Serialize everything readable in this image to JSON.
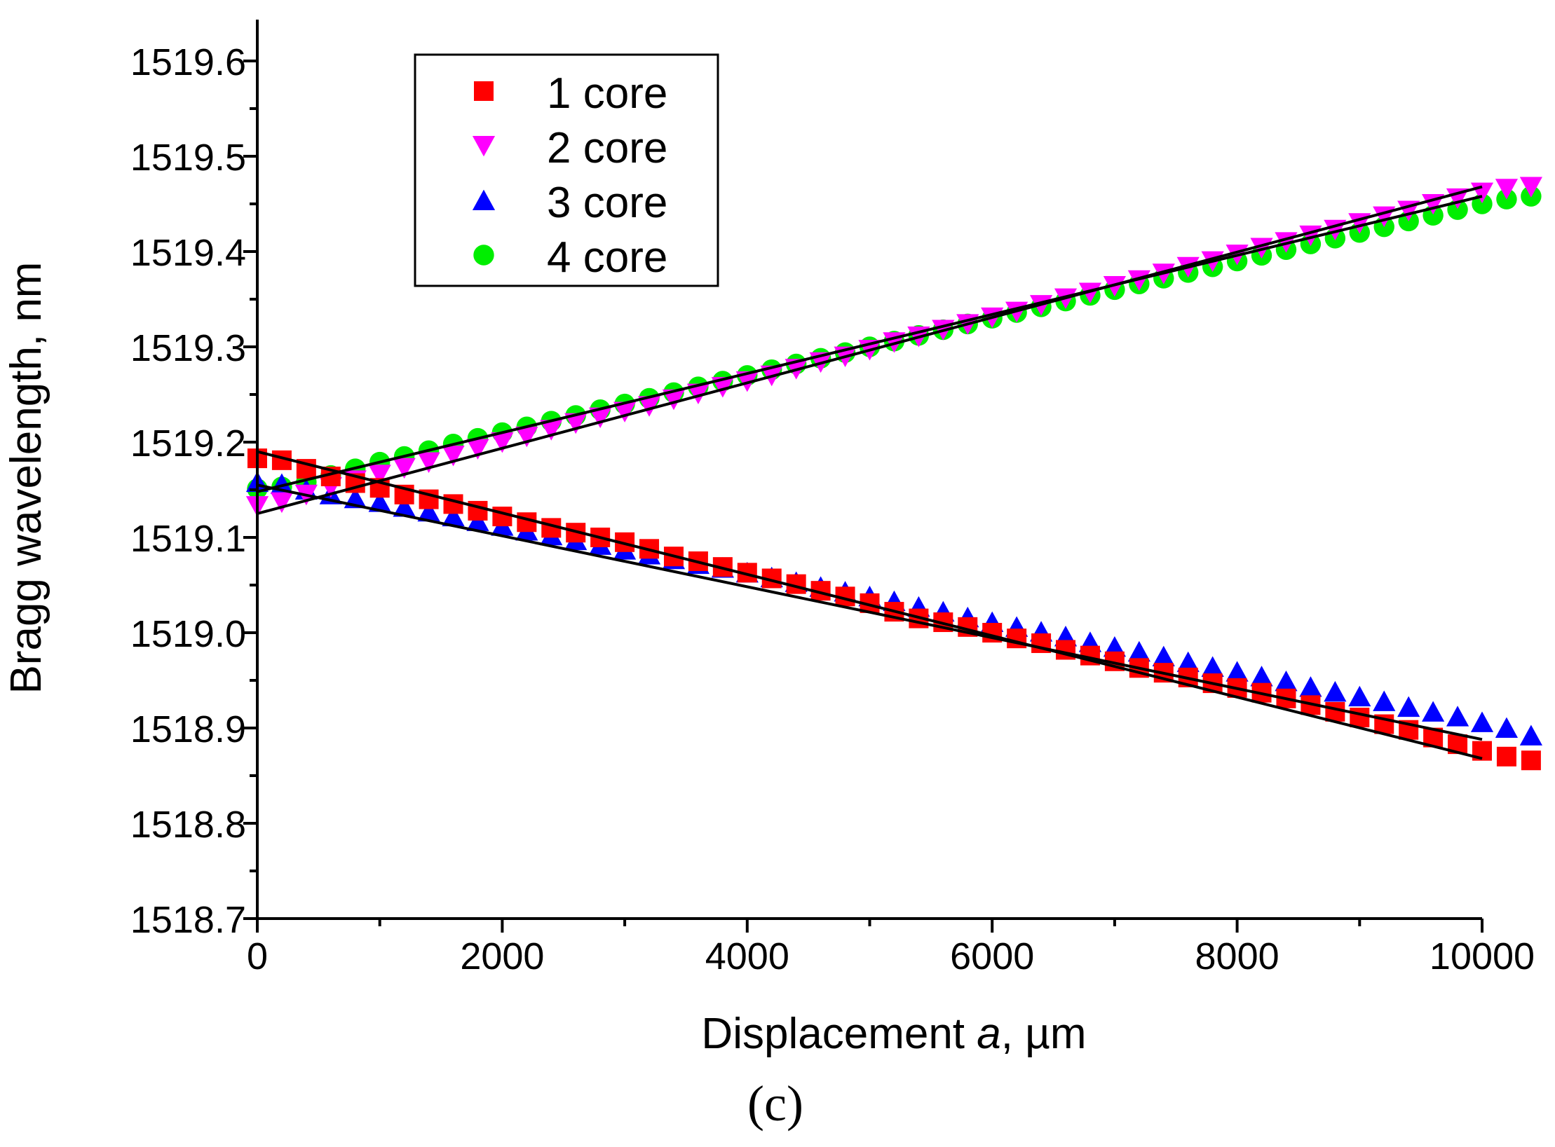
{
  "chart_data": {
    "type": "scatter",
    "title": "",
    "xlabel_main": "Displacement ",
    "xlabel_var": "a",
    "xlabel_unit": ", µm",
    "ylabel": "Bragg wavelength, nm",
    "panel_label": "(c)",
    "xlim": [
      0,
      10000
    ],
    "ylim": [
      1518.7,
      1519.65
    ],
    "x_ticks": [
      0,
      2000,
      4000,
      6000,
      8000,
      10000
    ],
    "x_tick_labels": [
      "0",
      "2000",
      "4000",
      "6000",
      "8000",
      "10000"
    ],
    "y_ticks": [
      1518.7,
      1518.8,
      1518.9,
      1519.0,
      1519.1,
      1519.2,
      1519.3,
      1519.4,
      1519.5,
      1519.6
    ],
    "y_tick_labels": [
      "1518.7",
      "1518.8",
      "1518.9",
      "1519.0",
      "1519.1",
      "1519.2",
      "1519.3",
      "1519.4",
      "1519.5",
      "1519.6"
    ],
    "grid": false,
    "legend_position": "top-left",
    "x_step": 200,
    "series": [
      {
        "name": "1 core",
        "marker": "square",
        "color": "#ff0000",
        "fit": {
          "start": 1519.19,
          "end": 1518.868
        },
        "values": [
          1519.183,
          1519.181,
          1519.172,
          1519.164,
          1519.157,
          1519.152,
          1519.145,
          1519.14,
          1519.135,
          1519.128,
          1519.122,
          1519.116,
          1519.11,
          1519.105,
          1519.1,
          1519.095,
          1519.088,
          1519.08,
          1519.075,
          1519.069,
          1519.063,
          1519.057,
          1519.051,
          1519.044,
          1519.038,
          1519.031,
          1519.022,
          1519.015,
          1519.011,
          1519.006,
          1519.0,
          1518.994,
          1518.989,
          1518.982,
          1518.976,
          1518.97,
          1518.963,
          1518.958,
          1518.953,
          1518.947,
          1518.942,
          1518.937,
          1518.931,
          1518.924,
          1518.917,
          1518.911,
          1518.904,
          1518.898,
          1518.89,
          1518.883,
          1518.876,
          1518.87,
          1518.866
        ]
      },
      {
        "name": "2 core",
        "marker": "triangle-down",
        "color": "#ff00ff",
        "fit": {
          "start": 1519.125,
          "end": 1519.468
        },
        "values": [
          1519.133,
          1519.137,
          1519.145,
          1519.153,
          1519.16,
          1519.166,
          1519.173,
          1519.179,
          1519.186,
          1519.193,
          1519.2,
          1519.206,
          1519.213,
          1519.22,
          1519.226,
          1519.232,
          1519.238,
          1519.245,
          1519.251,
          1519.258,
          1519.264,
          1519.27,
          1519.277,
          1519.284,
          1519.29,
          1519.297,
          1519.305,
          1519.311,
          1519.318,
          1519.324,
          1519.331,
          1519.337,
          1519.344,
          1519.351,
          1519.357,
          1519.364,
          1519.37,
          1519.377,
          1519.384,
          1519.39,
          1519.397,
          1519.404,
          1519.41,
          1519.417,
          1519.423,
          1519.43,
          1519.437,
          1519.443,
          1519.45,
          1519.456,
          1519.462,
          1519.466,
          1519.468
        ]
      },
      {
        "name": "3 core",
        "marker": "triangle-up",
        "color": "#0000ff",
        "fit": {
          "start": 1519.155,
          "end": 1518.888
        },
        "values": [
          1519.158,
          1519.156,
          1519.15,
          1519.145,
          1519.141,
          1519.137,
          1519.132,
          1519.127,
          1519.122,
          1519.117,
          1519.112,
          1519.107,
          1519.102,
          1519.097,
          1519.092,
          1519.087,
          1519.082,
          1519.077,
          1519.072,
          1519.068,
          1519.063,
          1519.058,
          1519.053,
          1519.048,
          1519.043,
          1519.038,
          1519.033,
          1519.027,
          1519.022,
          1519.016,
          1519.011,
          1519.006,
          1519.001,
          1518.996,
          1518.99,
          1518.985,
          1518.98,
          1518.975,
          1518.969,
          1518.964,
          1518.959,
          1518.954,
          1518.949,
          1518.943,
          1518.938,
          1518.933,
          1518.928,
          1518.922,
          1518.917,
          1518.912,
          1518.906,
          1518.9,
          1518.892
        ]
      },
      {
        "name": "4 core",
        "marker": "circle",
        "color": "#00ee00",
        "fit": {
          "start": 1519.148,
          "end": 1519.458
        },
        "values": [
          1519.151,
          1519.153,
          1519.158,
          1519.165,
          1519.172,
          1519.179,
          1519.185,
          1519.191,
          1519.198,
          1519.204,
          1519.21,
          1519.216,
          1519.222,
          1519.228,
          1519.234,
          1519.24,
          1519.246,
          1519.252,
          1519.258,
          1519.264,
          1519.27,
          1519.276,
          1519.282,
          1519.288,
          1519.294,
          1519.3,
          1519.306,
          1519.312,
          1519.318,
          1519.324,
          1519.33,
          1519.336,
          1519.342,
          1519.348,
          1519.354,
          1519.36,
          1519.366,
          1519.372,
          1519.378,
          1519.384,
          1519.39,
          1519.396,
          1519.402,
          1519.408,
          1519.414,
          1519.42,
          1519.426,
          1519.432,
          1519.438,
          1519.444,
          1519.45,
          1519.455,
          1519.458
        ]
      }
    ]
  }
}
